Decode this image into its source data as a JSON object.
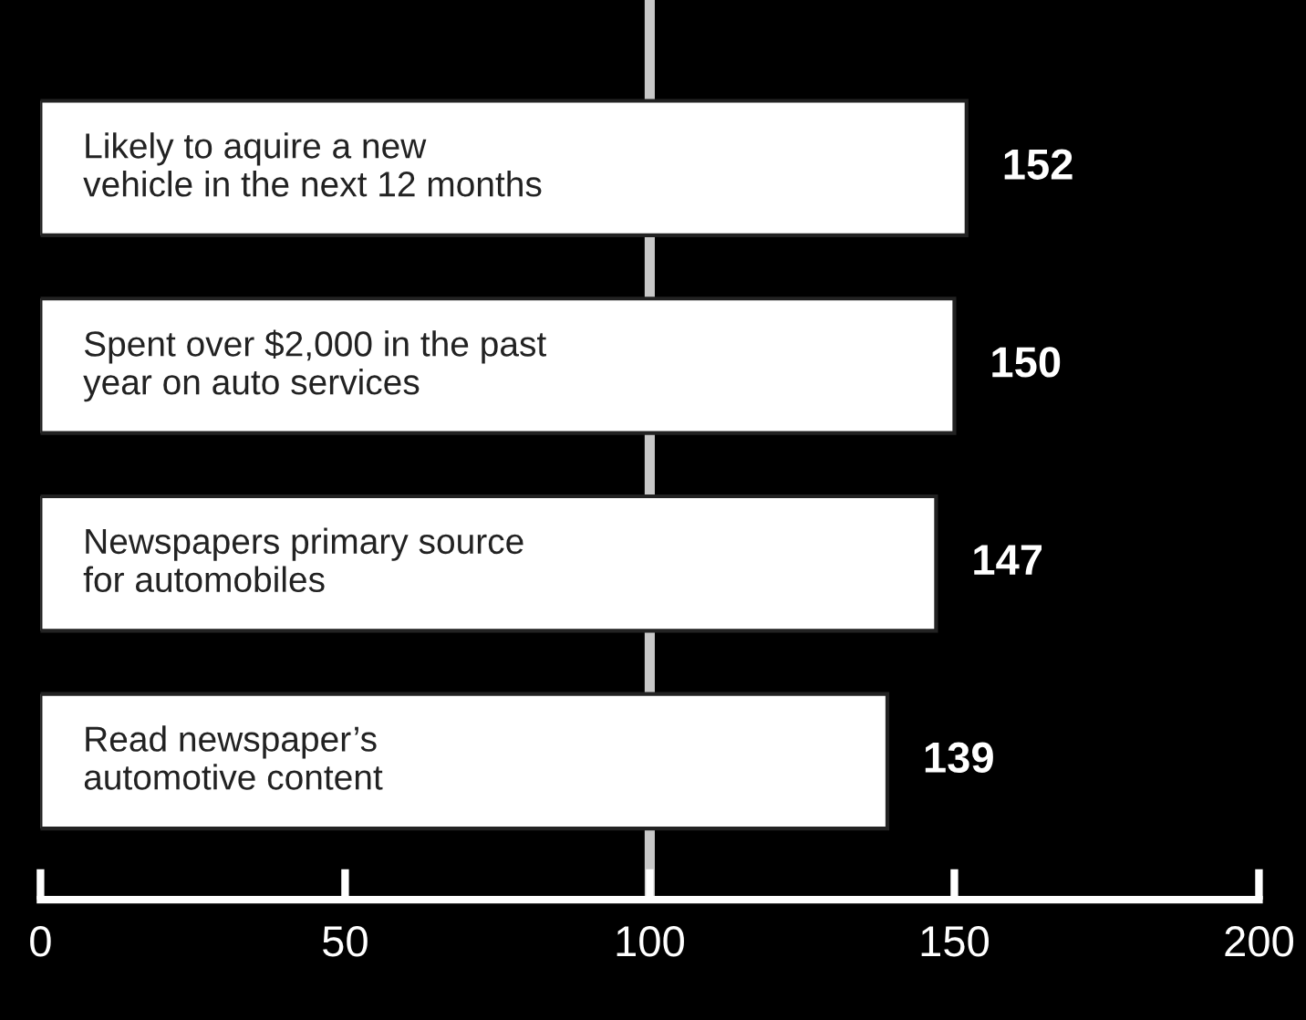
{
  "chart_data": {
    "type": "bar",
    "orientation": "horizontal",
    "categories": [
      "Likely to aquire a new\nvehicle in the next 12 months",
      "Spent over $2,000 in the past\nyear on auto services",
      "Newspapers primary source\nfor automobiles",
      "Read newspaper’s\nautomotive content"
    ],
    "values": [
      152,
      150,
      147,
      139
    ],
    "color": "#ffffff",
    "xlim": [
      0,
      200
    ],
    "xticks": [
      0,
      50,
      100,
      150,
      200
    ],
    "ref_lines": [
      {
        "axis": "x",
        "value": 100,
        "color": "#c8c8c8"
      }
    ],
    "data_labels": true,
    "grid": false,
    "legend": false
  }
}
